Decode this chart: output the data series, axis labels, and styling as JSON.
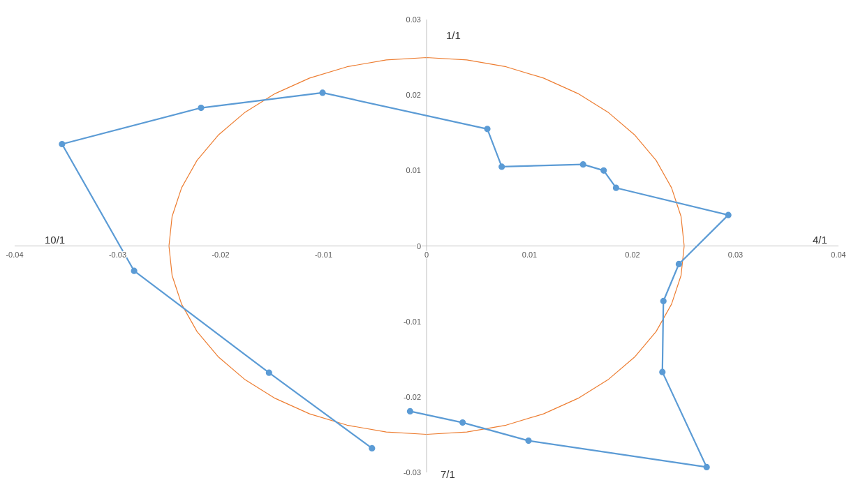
{
  "chart_data": {
    "type": "line",
    "xlim": [
      -0.04,
      0.04
    ],
    "xticks": [
      -0.04,
      -0.03,
      -0.02,
      -0.01,
      0,
      0.01,
      0.02,
      0.03,
      0.04
    ],
    "ylim": [
      -0.03,
      0.03
    ],
    "yticks": [
      -0.03,
      -0.02,
      -0.01,
      0,
      0.01,
      0.02,
      0.03
    ],
    "series": [
      {
        "color": "#5b9bd5",
        "marker": "circle",
        "x": [
          -0.0053,
          -0.0153,
          -0.0284,
          -0.0354,
          -0.0219,
          -0.0101,
          0.0059,
          0.0073,
          0.0152,
          0.0172,
          0.0184,
          0.0293,
          0.0245,
          0.023,
          0.0229,
          0.0272,
          0.0099,
          0.0035,
          -0.0016
        ],
        "values": [
          -0.0268,
          -0.0168,
          -0.0033,
          0.0135,
          0.0183,
          0.0203,
          0.0155,
          0.0105,
          0.0108,
          0.01,
          0.0077,
          0.0041,
          -0.0024,
          -0.0073,
          -0.0167,
          -0.0293,
          -0.0258,
          -0.0234,
          -0.0219
        ]
      }
    ],
    "annotations": [
      "1/1",
      "4/1",
      "7/1",
      "10/1"
    ]
  }
}
